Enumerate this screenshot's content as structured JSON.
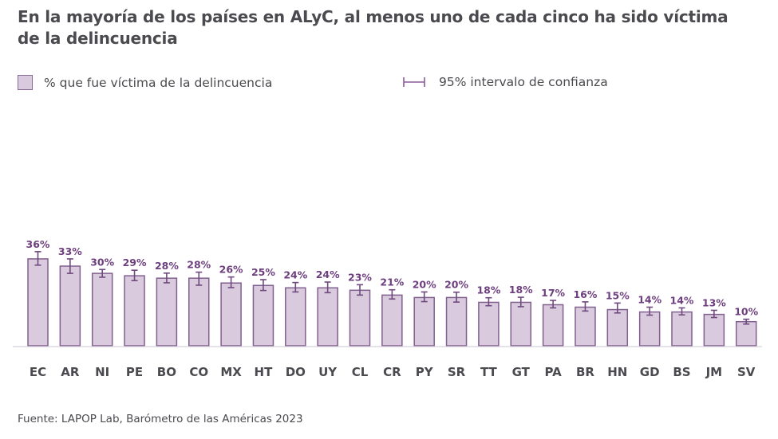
{
  "title": "En la mayoría de los países en ALyC, al menos uno de cada cinco ha sido víctima de la delincuencia",
  "legend": {
    "bar_label": "% que fue víctima de la delincuencia",
    "ci_label": "95% intervalo de confianza"
  },
  "source": "Fuente: LAPOP Lab, Barómetro de las Américas 2023",
  "colors": {
    "bar_fill": "#d9cade",
    "bar_stroke": "#80608e",
    "label": "#6d3f7e",
    "text": "#4a4a4f"
  },
  "chart_data": {
    "type": "bar",
    "title": "En la mayoría de los países en ALyC, al menos uno de cada cinco ha sido víctima de la delincuencia",
    "xlabel": "",
    "ylabel": "",
    "ylim": [
      0,
      40
    ],
    "grid": false,
    "legend_position": "top",
    "categories": [
      "EC",
      "AR",
      "NI",
      "PE",
      "BO",
      "CO",
      "MX",
      "HT",
      "DO",
      "UY",
      "CL",
      "CR",
      "PY",
      "SR",
      "TT",
      "GT",
      "PA",
      "BR",
      "HN",
      "GD",
      "BS",
      "JM",
      "SV"
    ],
    "values": [
      36,
      33,
      30,
      29,
      28,
      28,
      26,
      25,
      24,
      24,
      23,
      21,
      20,
      20,
      18,
      18,
      17,
      16,
      15,
      14,
      14,
      13,
      10
    ],
    "labels": [
      "36%",
      "33%",
      "30%",
      "29%",
      "28%",
      "28%",
      "26%",
      "25%",
      "24%",
      "24%",
      "23%",
      "21%",
      "20%",
      "20%",
      "18%",
      "18%",
      "17%",
      "16%",
      "15%",
      "14%",
      "14%",
      "13%",
      "10%"
    ],
    "ci_lower": [
      33.4,
      30.0,
      28.4,
      27.0,
      26.1,
      25.1,
      24.1,
      22.9,
      22.3,
      22.0,
      21.0,
      19.4,
      18.3,
      18.1,
      16.6,
      16.2,
      15.7,
      14.4,
      13.6,
      12.7,
      12.8,
      11.7,
      9.0
    ],
    "ci_upper": [
      39.0,
      36.0,
      31.6,
      31.3,
      30.1,
      30.5,
      28.5,
      27.4,
      26.2,
      26.4,
      25.3,
      23.2,
      22.3,
      22.2,
      19.9,
      20.1,
      18.8,
      18.2,
      17.7,
      16.0,
      15.7,
      14.7,
      11.0
    ]
  }
}
